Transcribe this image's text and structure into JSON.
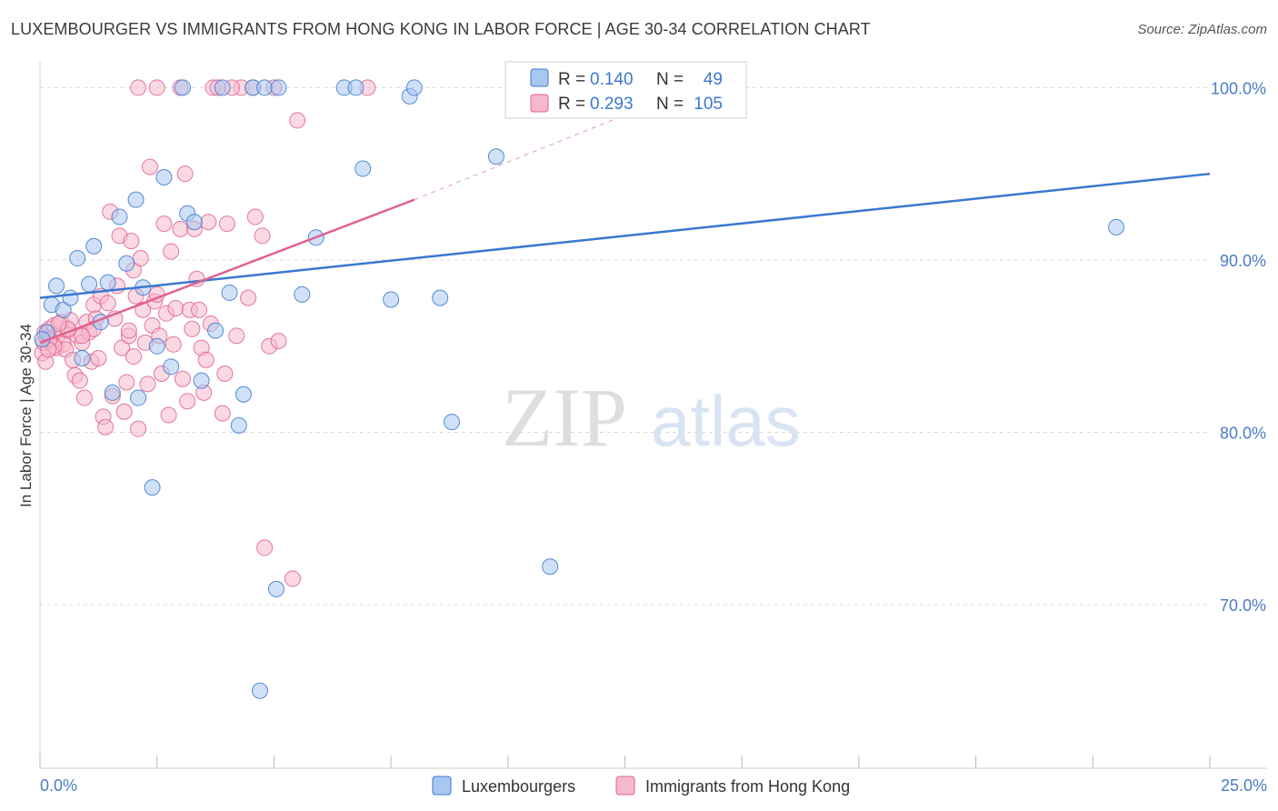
{
  "header": {
    "title": "LUXEMBOURGER VS IMMIGRANTS FROM HONG KONG IN LABOR FORCE | AGE 30-34 CORRELATION CHART",
    "source": "Source: ZipAtlas.com"
  },
  "watermark": {
    "zip": "ZIP",
    "atlas": "atlas"
  },
  "colors": {
    "blue": "#3a78d0",
    "blue_fill": "#a9c8f0",
    "pink": "#e0608e",
    "pink_fill": "#f6b9cc",
    "axis_label": "#4a7cc4",
    "grid": "#d7d7d7"
  },
  "chart_data": {
    "type": "scatter",
    "title": "LUXEMBOURGER VS IMMIGRANTS FROM HONG KONG IN LABOR FORCE | AGE 30-34 CORRELATION CHART",
    "xlabel": "",
    "ylabel": "In Labor Force | Age 30-34",
    "xlim": [
      0,
      25
    ],
    "ylim": [
      60.5,
      101.5
    ],
    "x_tick_labels": [
      "0.0%",
      "25.0%"
    ],
    "y_ticks": [
      70,
      80,
      90,
      100
    ],
    "y_tick_labels": [
      "70.0%",
      "80.0%",
      "90.0%",
      "100.0%"
    ],
    "legend": {
      "stats": [
        {
          "r_label": "R =",
          "r_value": "0.140",
          "n_label": "N =",
          "n_value": "49"
        },
        {
          "r_label": "R =",
          "r_value": "0.293",
          "n_label": "N =",
          "n_value": "105"
        }
      ]
    },
    "series": [
      {
        "name": "Luxembourgers",
        "trend": {
          "x0": 0.0,
          "y0": 87.8,
          "x1": 25.0,
          "y1": 95.0,
          "dashed_to": null
        },
        "points": [
          [
            0.15,
            85.8
          ],
          [
            0.25,
            87.4
          ],
          [
            0.35,
            88.5
          ],
          [
            0.5,
            87.1
          ],
          [
            0.65,
            87.8
          ],
          [
            0.8,
            90.1
          ],
          [
            0.9,
            84.3
          ],
          [
            1.05,
            88.6
          ],
          [
            1.15,
            90.8
          ],
          [
            1.3,
            86.4
          ],
          [
            1.45,
            88.7
          ],
          [
            1.55,
            82.3
          ],
          [
            1.7,
            92.5
          ],
          [
            1.85,
            89.8
          ],
          [
            2.05,
            93.5
          ],
          [
            2.1,
            82.0
          ],
          [
            2.2,
            88.4
          ],
          [
            2.4,
            76.8
          ],
          [
            2.5,
            85.0
          ],
          [
            2.65,
            94.8
          ],
          [
            2.8,
            83.8
          ],
          [
            3.05,
            100.0
          ],
          [
            3.15,
            92.7
          ],
          [
            3.3,
            92.2
          ],
          [
            3.45,
            83.0
          ],
          [
            3.75,
            85.9
          ],
          [
            3.9,
            100.0
          ],
          [
            4.05,
            88.1
          ],
          [
            4.25,
            80.4
          ],
          [
            4.35,
            82.2
          ],
          [
            4.55,
            100.0
          ],
          [
            4.7,
            65.0
          ],
          [
            4.8,
            100.0
          ],
          [
            5.05,
            70.9
          ],
          [
            5.1,
            100.0
          ],
          [
            5.6,
            88.0
          ],
          [
            5.9,
            91.3
          ],
          [
            6.5,
            100.0
          ],
          [
            6.75,
            100.0
          ],
          [
            6.9,
            95.3
          ],
          [
            7.5,
            87.7
          ],
          [
            7.9,
            99.5
          ],
          [
            8.0,
            100.0
          ],
          [
            8.55,
            87.8
          ],
          [
            8.8,
            80.6
          ],
          [
            9.75,
            96.0
          ],
          [
            10.9,
            72.2
          ],
          [
            23.0,
            91.9
          ],
          [
            0.05,
            85.4
          ]
        ]
      },
      {
        "name": "Immigrants from Hong Kong",
        "trend": {
          "x0": 0.0,
          "y0": 85.2,
          "x1": 8.0,
          "y1": 93.5,
          "dashed_to": {
            "x": 13.5,
            "y": 99.5
          }
        },
        "points": [
          [
            0.05,
            84.6
          ],
          [
            0.08,
            85.2
          ],
          [
            0.1,
            85.8
          ],
          [
            0.12,
            84.1
          ],
          [
            0.15,
            85.5
          ],
          [
            0.2,
            86.0
          ],
          [
            0.25,
            85.3
          ],
          [
            0.3,
            86.2
          ],
          [
            0.35,
            84.9
          ],
          [
            0.4,
            85.7
          ],
          [
            0.45,
            86.4
          ],
          [
            0.5,
            85.1
          ],
          [
            0.55,
            84.8
          ],
          [
            0.6,
            85.9
          ],
          [
            0.65,
            86.5
          ],
          [
            0.7,
            84.2
          ],
          [
            0.75,
            83.3
          ],
          [
            0.8,
            85.6
          ],
          [
            0.85,
            83.0
          ],
          [
            0.9,
            85.2
          ],
          [
            0.95,
            82.0
          ],
          [
            1.0,
            86.4
          ],
          [
            1.05,
            85.8
          ],
          [
            1.1,
            84.1
          ],
          [
            1.15,
            87.4
          ],
          [
            1.2,
            86.6
          ],
          [
            1.25,
            84.3
          ],
          [
            1.3,
            87.9
          ],
          [
            1.35,
            80.9
          ],
          [
            1.4,
            80.3
          ],
          [
            1.45,
            87.5
          ],
          [
            1.5,
            92.8
          ],
          [
            1.55,
            82.1
          ],
          [
            1.6,
            86.6
          ],
          [
            1.65,
            88.5
          ],
          [
            1.7,
            91.4
          ],
          [
            1.75,
            84.9
          ],
          [
            1.8,
            81.2
          ],
          [
            1.85,
            82.9
          ],
          [
            1.9,
            85.6
          ],
          [
            1.95,
            91.1
          ],
          [
            2.0,
            89.4
          ],
          [
            2.05,
            87.9
          ],
          [
            2.1,
            80.2
          ],
          [
            2.15,
            90.1
          ],
          [
            2.2,
            87.1
          ],
          [
            2.25,
            85.2
          ],
          [
            2.3,
            82.8
          ],
          [
            2.35,
            95.4
          ],
          [
            2.4,
            86.2
          ],
          [
            2.45,
            87.6
          ],
          [
            2.5,
            88.0
          ],
          [
            2.55,
            85.6
          ],
          [
            2.6,
            83.4
          ],
          [
            2.65,
            92.1
          ],
          [
            2.7,
            86.9
          ],
          [
            2.75,
            81.0
          ],
          [
            2.8,
            90.5
          ],
          [
            2.85,
            85.1
          ],
          [
            2.9,
            87.2
          ],
          [
            3.0,
            91.8
          ],
          [
            3.05,
            83.1
          ],
          [
            3.1,
            95.0
          ],
          [
            3.15,
            81.8
          ],
          [
            3.2,
            87.1
          ],
          [
            3.25,
            86.0
          ],
          [
            3.3,
            91.8
          ],
          [
            3.35,
            88.9
          ],
          [
            3.4,
            87.1
          ],
          [
            3.45,
            84.9
          ],
          [
            3.5,
            82.3
          ],
          [
            3.55,
            84.2
          ],
          [
            3.6,
            92.2
          ],
          [
            3.65,
            86.3
          ],
          [
            3.7,
            100.0
          ],
          [
            3.8,
            100.0
          ],
          [
            3.9,
            81.1
          ],
          [
            3.95,
            83.4
          ],
          [
            4.0,
            92.1
          ],
          [
            4.2,
            85.6
          ],
          [
            4.3,
            100.0
          ],
          [
            4.45,
            87.8
          ],
          [
            4.55,
            100.0
          ],
          [
            4.6,
            92.5
          ],
          [
            4.75,
            91.4
          ],
          [
            4.8,
            73.3
          ],
          [
            4.9,
            85.0
          ],
          [
            5.0,
            100.0
          ],
          [
            5.1,
            85.3
          ],
          [
            5.4,
            71.5
          ],
          [
            5.5,
            98.1
          ],
          [
            7.0,
            100.0
          ],
          [
            2.1,
            100.0
          ],
          [
            2.5,
            100.0
          ],
          [
            3.0,
            100.0
          ],
          [
            4.1,
            100.0
          ],
          [
            1.15,
            86.0
          ],
          [
            0.3,
            85.0
          ],
          [
            0.2,
            85.4
          ],
          [
            0.18,
            84.8
          ],
          [
            0.6,
            86.0
          ],
          [
            1.9,
            85.9
          ],
          [
            2.0,
            84.4
          ],
          [
            0.9,
            85.6
          ],
          [
            0.4,
            86.3
          ]
        ]
      }
    ]
  },
  "bottom_legend": {
    "items": [
      {
        "label": "Luxembourgers"
      },
      {
        "label": "Immigrants from Hong Kong"
      }
    ]
  }
}
